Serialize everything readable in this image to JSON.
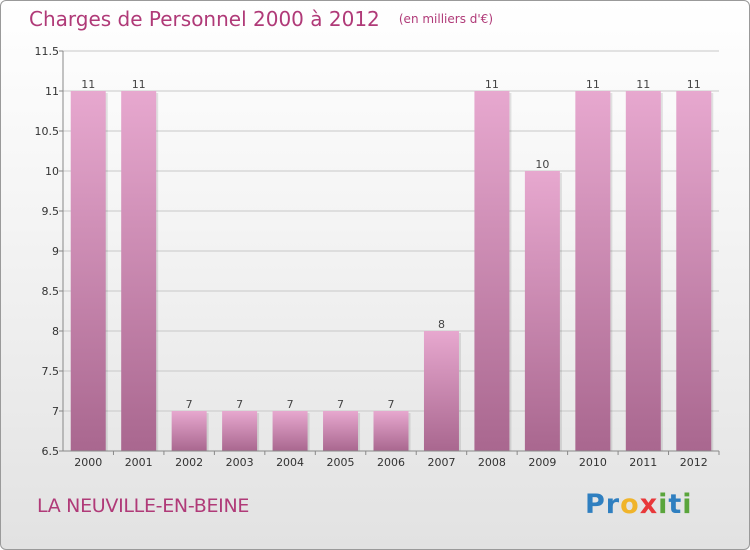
{
  "header": {
    "title": "Charges de Personnel 2000 à 2012",
    "unit": "(en milliers d'€)"
  },
  "footer": {
    "commune": "LA NEUVILLE-EN-BEINE",
    "logo_letters": [
      {
        "char": "P",
        "color": "#2f7fc0"
      },
      {
        "char": "r",
        "color": "#2f7fc0"
      },
      {
        "char": "o",
        "color": "#f0b42a"
      },
      {
        "char": "x",
        "color": "#e8383a"
      },
      {
        "char": "i",
        "color": "#5aa53c"
      },
      {
        "char": "t",
        "color": "#2f7fc0"
      },
      {
        "char": "i",
        "color": "#5aa53c"
      }
    ]
  },
  "colors": {
    "bar_top": "#e7a8cf",
    "bar_bottom": "#a9678f",
    "grid": "#c8c8c8",
    "axis": "#888888"
  },
  "chart_data": {
    "type": "bar",
    "title": "Charges de Personnel 2000 à 2012",
    "xlabel": "",
    "ylabel": "",
    "categories": [
      "2000",
      "2001",
      "2002",
      "2003",
      "2004",
      "2005",
      "2006",
      "2007",
      "2008",
      "2009",
      "2010",
      "2011",
      "2012"
    ],
    "values": [
      11,
      11,
      7,
      7,
      7,
      7,
      7,
      8,
      11,
      10,
      11,
      11,
      11
    ],
    "data_labels": [
      "11",
      "11",
      "7",
      "7",
      "7",
      "7",
      "7",
      "8",
      "11",
      "10",
      "11",
      "11",
      "11"
    ],
    "ylim": [
      6.5,
      11.5
    ],
    "yticks": [
      6.5,
      7,
      7.5,
      8,
      8.5,
      9,
      9.5,
      10,
      10.5,
      11,
      11.5
    ],
    "ytick_labels": [
      "6.5",
      "7",
      "7.5",
      "8",
      "8.5",
      "9",
      "9.5",
      "10",
      "10.5",
      "11",
      "11.5"
    ],
    "grid": true,
    "legend": "none"
  }
}
